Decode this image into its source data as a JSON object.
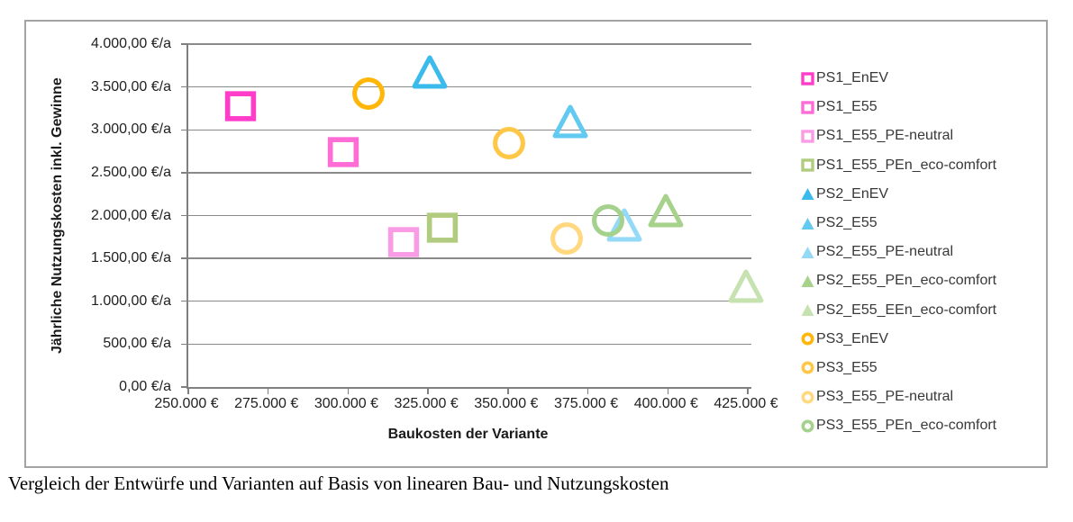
{
  "caption": {
    "text": "Vergleich der Entwürfe und Varianten auf Basis von linearen Bau- und Nutzungskosten"
  },
  "chart_data": {
    "type": "scatter",
    "title": "",
    "xlabel": "Baukosten der Variante",
    "ylabel": "Jährliche Nutzungskosten inkl. Gewinne",
    "grid": "horizontal",
    "legend_position": "right",
    "x_axis": {
      "min": 250000,
      "max": 425000,
      "tick_step": 25000,
      "ticks": [
        {
          "value": 250000,
          "label": "250.000 €"
        },
        {
          "value": 275000,
          "label": "275.000 €"
        },
        {
          "value": 300000,
          "label": "300.000 €"
        },
        {
          "value": 325000,
          "label": "325.000 €"
        },
        {
          "value": 350000,
          "label": "350.000 €"
        },
        {
          "value": 375000,
          "label": "375.000 €"
        },
        {
          "value": 400000,
          "label": "400.000 €"
        },
        {
          "value": 425000,
          "label": "425.000 €"
        }
      ]
    },
    "y_axis": {
      "min": 0,
      "max": 4000,
      "tick_step": 500,
      "ticks": [
        {
          "value": 4000,
          "label": "4.000,00 €/a"
        },
        {
          "value": 3500,
          "label": "3.500,00 €/a"
        },
        {
          "value": 3000,
          "label": "3.000,00 €/a"
        },
        {
          "value": 2500,
          "label": "2.500,00 €/a"
        },
        {
          "value": 2000,
          "label": "2.000,00 €/a"
        },
        {
          "value": 1500,
          "label": "1.500,00 €/a"
        },
        {
          "value": 1000,
          "label": "1.000,00 €/a"
        },
        {
          "value": 500,
          "label": "500,00 €/a"
        },
        {
          "value": 0,
          "label": "0,00 €/a"
        }
      ]
    },
    "series": [
      {
        "name": "PS1_EnEV",
        "marker": "square",
        "color": "#FF3DC9",
        "x": 267000,
        "y": 3280
      },
      {
        "name": "PS1_E55",
        "marker": "square",
        "color": "#FF6CD6",
        "x": 299000,
        "y": 2740
      },
      {
        "name": "PS1_E55_PE-neutral",
        "marker": "square",
        "color": "#FA9BE5",
        "x": 318000,
        "y": 1690
      },
      {
        "name": "PS1_E55_PEn_eco-comfort",
        "marker": "square",
        "color": "#B2CC7F",
        "x": 330000,
        "y": 1860
      },
      {
        "name": "PS2_EnEV",
        "marker": "triangle",
        "color": "#3ABBEC",
        "x": 326000,
        "y": 3670
      },
      {
        "name": "PS2_E55",
        "marker": "triangle",
        "color": "#62C9F1",
        "x": 370000,
        "y": 3100
      },
      {
        "name": "PS2_E55_PE-neutral",
        "marker": "triangle",
        "color": "#94DAF6",
        "x": 387000,
        "y": 1890
      },
      {
        "name": "PS2_E55_PEn_eco-comfort",
        "marker": "triangle",
        "color": "#A7D28B",
        "x": 400000,
        "y": 2060
      },
      {
        "name": "PS2_E55_EEn_eco-comfort",
        "marker": "triangle",
        "color": "#C7E2B1",
        "x": 425000,
        "y": 1180
      },
      {
        "name": "PS3_EnEV",
        "marker": "circle",
        "color": "#FFB608",
        "x": 307000,
        "y": 3420
      },
      {
        "name": "PS3_E55",
        "marker": "circle",
        "color": "#FFC747",
        "x": 351000,
        "y": 2850
      },
      {
        "name": "PS3_E55_PE-neutral",
        "marker": "circle",
        "color": "#FFD87F",
        "x": 369000,
        "y": 1730
      },
      {
        "name": "PS3_E55_PEn_eco-comfort",
        "marker": "circle",
        "color": "#A4D18C",
        "x": 382000,
        "y": 1940
      }
    ]
  }
}
